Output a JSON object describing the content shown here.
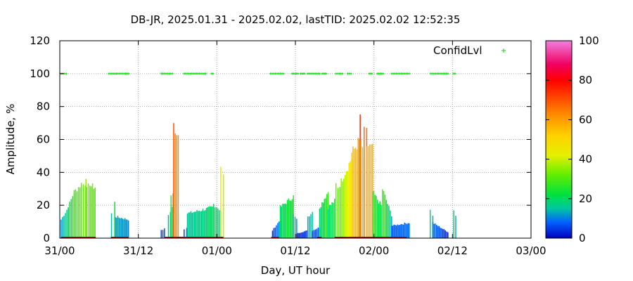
{
  "chart_data": {
    "type": "bar",
    "title": "DB-JR, 2025.01.31 - 2025.02.02, lastTID: 2025.02.02 12:52:35",
    "xlabel": "Day, UT hour",
    "ylabel": "Amplitude, %",
    "x_unit": "hours since 31/00",
    "xlim": [
      0,
      72
    ],
    "ylim": [
      0,
      120
    ],
    "x_ticks": [
      {
        "value": 0,
        "label": "31/00"
      },
      {
        "value": 12,
        "label": "31/12"
      },
      {
        "value": 24,
        "label": "01/00"
      },
      {
        "value": 36,
        "label": "01/12"
      },
      {
        "value": 48,
        "label": "02/00"
      },
      {
        "value": 60,
        "label": "02/12"
      },
      {
        "value": 72,
        "label": "03/00"
      }
    ],
    "y_ticks": [
      0,
      20,
      40,
      60,
      80,
      100,
      120
    ],
    "grid": true,
    "legend": {
      "position": "top-right",
      "entries": [
        {
          "name": "ConfidLvl",
          "color": "#00dd00"
        }
      ]
    },
    "colorbar": {
      "min": 0,
      "max": 100,
      "ticks": [
        0,
        20,
        40,
        60,
        80,
        100
      ]
    },
    "amplitude_bars": [
      {
        "x_start": 0.2,
        "x_end": 1.3,
        "y_start": 12,
        "y_end": 20
      },
      {
        "x_start": 1.3,
        "x_end": 2.2,
        "y_start": 20,
        "y_end": 30
      },
      {
        "x_start": 2.2,
        "x_end": 3.3,
        "y_start": 30,
        "y_end": 35
      },
      {
        "x_start": 3.3,
        "x_end": 3.9,
        "y_start": 35,
        "y_end": 34
      },
      {
        "x_start": 3.9,
        "x_end": 4.1,
        "y_start": 40,
        "y_end": 40
      },
      {
        "x_start": 4.1,
        "x_end": 4.6,
        "y_start": 35,
        "y_end": 32
      },
      {
        "x_start": 4.6,
        "x_end": 5.4,
        "y_start": 34,
        "y_end": 33
      },
      {
        "x_start": 7.8,
        "x_end": 8.0,
        "y_start": 16,
        "y_end": 16
      },
      {
        "x_start": 8.3,
        "x_end": 8.5,
        "y_start": 23,
        "y_end": 23
      },
      {
        "x_start": 8.5,
        "x_end": 10.5,
        "y_start": 14,
        "y_end": 12
      },
      {
        "x_start": 15.5,
        "x_end": 16.0,
        "y_start": 5,
        "y_end": 6
      },
      {
        "x_start": 16.6,
        "x_end": 17.2,
        "y_start": 15,
        "y_end": 20
      },
      {
        "x_start": 17.0,
        "x_end": 17.3,
        "y_start": 28,
        "y_end": 28
      },
      {
        "x_start": 17.4,
        "x_end": 18.1,
        "y_start": 73,
        "y_end": 67
      },
      {
        "x_start": 19.0,
        "x_end": 19.4,
        "y_start": 6,
        "y_end": 7
      },
      {
        "x_start": 19.5,
        "x_end": 23.5,
        "y_start": 16,
        "y_end": 20
      },
      {
        "x_start": 23.5,
        "x_end": 24.6,
        "y_start": 22,
        "y_end": 18
      },
      {
        "x_start": 24.6,
        "x_end": 25.0,
        "y_start": 45,
        "y_end": 40
      },
      {
        "x_start": 32.5,
        "x_end": 33.7,
        "y_start": 5,
        "y_end": 12
      },
      {
        "x_start": 33.7,
        "x_end": 35.7,
        "y_start": 20,
        "y_end": 27
      },
      {
        "x_start": 35.7,
        "x_end": 36.2,
        "y_start": 15,
        "y_end": 12
      },
      {
        "x_start": 36.2,
        "x_end": 37.9,
        "y_start": 3,
        "y_end": 5
      },
      {
        "x_start": 37.9,
        "x_end": 38.6,
        "y_start": 14,
        "y_end": 17
      },
      {
        "x_start": 38.6,
        "x_end": 39.7,
        "y_start": 5,
        "y_end": 7
      },
      {
        "x_start": 39.7,
        "x_end": 41.0,
        "y_start": 20,
        "y_end": 30
      },
      {
        "x_start": 41.0,
        "x_end": 42.2,
        "y_start": 20,
        "y_end": 25
      },
      {
        "x_start": 42.2,
        "x_end": 42.8,
        "y_start": 35,
        "y_end": 32
      },
      {
        "x_start": 42.8,
        "x_end": 44.6,
        "y_start": 35,
        "y_end": 52
      },
      {
        "x_start": 44.6,
        "x_end": 45.8,
        "y_start": 55,
        "y_end": 63
      },
      {
        "x_start": 45.8,
        "x_end": 46.0,
        "y_start": 80,
        "y_end": 78
      },
      {
        "x_start": 46.0,
        "x_end": 46.5,
        "y_start": 60,
        "y_end": 55
      },
      {
        "x_start": 46.5,
        "x_end": 46.9,
        "y_start": 68,
        "y_end": 68
      },
      {
        "x_start": 46.9,
        "x_end": 47.8,
        "y_start": 60,
        "y_end": 58
      },
      {
        "x_start": 47.8,
        "x_end": 49.3,
        "y_start": 30,
        "y_end": 20
      },
      {
        "x_start": 49.3,
        "x_end": 50.7,
        "y_start": 32,
        "y_end": 15
      },
      {
        "x_start": 50.7,
        "x_end": 53.4,
        "y_start": 8,
        "y_end": 10
      },
      {
        "x_start": 56.6,
        "x_end": 57.0,
        "y_start": 18,
        "y_end": 15
      },
      {
        "x_start": 57.0,
        "x_end": 59.3,
        "y_start": 10,
        "y_end": 4
      },
      {
        "x_start": 60.2,
        "x_end": 60.5,
        "y_start": 18,
        "y_end": 15
      }
    ],
    "confid_lvl_segments": [
      [
        0.2,
        1.0
      ],
      [
        7.5,
        10.5
      ],
      [
        15.5,
        17.2
      ],
      [
        19.0,
        22.3
      ],
      [
        23.2,
        23.4
      ],
      [
        32.2,
        34.2
      ],
      [
        35.5,
        36.4
      ],
      [
        36.8,
        37.4
      ],
      [
        37.9,
        39.7
      ],
      [
        40.1,
        40.7
      ],
      [
        42.2,
        43.2
      ],
      [
        44.0,
        44.5
      ],
      [
        47.3,
        47.7
      ],
      [
        48.5,
        49.4
      ],
      [
        50.7,
        53.4
      ],
      [
        56.7,
        59.3
      ],
      [
        60.2,
        60.4
      ]
    ],
    "zero_markers": [
      [
        0.2,
        5.5
      ],
      [
        7.8,
        10.5
      ],
      [
        16.0,
        19.5
      ],
      [
        19.5,
        25.0
      ],
      [
        32.3,
        33.5
      ],
      [
        39.3,
        40.0
      ],
      [
        42.0,
        53.0
      ]
    ]
  }
}
